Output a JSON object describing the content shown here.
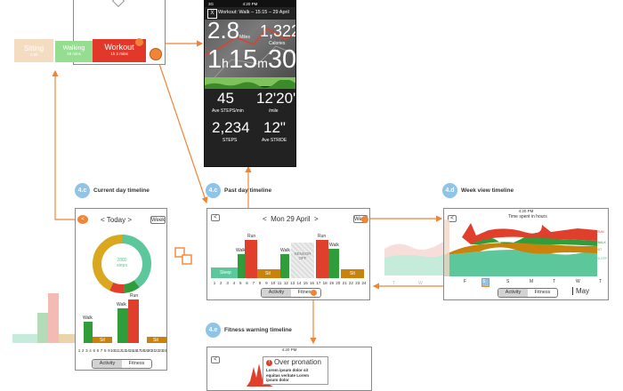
{
  "top_tiles": {
    "sitting": "Sitting",
    "sitting_sub": "2:5h",
    "walking": "Walking",
    "walking_sub": "49 mins",
    "workout": "Workout",
    "workout_sub": "1h 2 mins"
  },
  "workout_screen": {
    "status_time": "4:20 PM",
    "status_signal": "3G",
    "close": "X",
    "title": "Workout: Walk – 15:15 – 29 April",
    "distance": "2.8",
    "distance_unit": "Miles",
    "calories": "1,322",
    "calories_unit": "Calories",
    "time_h": "1",
    "time_h_unit": "h",
    "time_m": "15",
    "time_m_unit": "m",
    "time_s": "30",
    "time_s_unit": "s",
    "steps_min": "45",
    "steps_min_label": "Ave STEPS/min",
    "pace": "12'20\"",
    "pace_label": "/mile",
    "steps": "2,234",
    "steps_label": "STEPS",
    "stride": "12\"",
    "stride_label": "Ave STRIDE"
  },
  "current_day": {
    "badge": "4.c",
    "title": "Current day timeline",
    "back": "<",
    "date": "< Today >",
    "week": "Week",
    "ring_value": "2880",
    "ring_unit": "steps",
    "labels": {
      "walk1": "Walk",
      "walk2": "Walk",
      "run": "Run",
      "sit1": "Sit",
      "sit2": "Sit",
      "sleep": "Sleep"
    },
    "ticks": [
      "1",
      "2",
      "3",
      "4",
      "5",
      "6",
      "7",
      "8",
      "9",
      "10",
      "11",
      "12",
      "13",
      "14",
      "15",
      "16",
      "17",
      "18",
      "19",
      "20",
      "21",
      "22",
      "23",
      "24"
    ],
    "tabs": {
      "activity": "Activity",
      "fitness": "Fitness"
    }
  },
  "past_day": {
    "badge": "4.c",
    "title": "Past day timeline",
    "back": "<",
    "date": "<  Mon 29 April  >",
    "week": "Week",
    "labels": {
      "sleep": "Sleep",
      "walk1": "Walk",
      "run1": "Run",
      "sit1": "Sit",
      "walk2": "Walk",
      "sit2": "Sit",
      "sensor": "SENSOR\nOFF",
      "run2": "Run",
      "walk3": "Walk",
      "sit3": "Sit"
    },
    "ticks": [
      "1",
      "2",
      "3",
      "4",
      "5",
      "6",
      "7",
      "8",
      "9",
      "10",
      "11",
      "12",
      "13",
      "14",
      "15",
      "16",
      "17",
      "18",
      "19",
      "20",
      "21",
      "22",
      "23",
      "24"
    ],
    "tabs": {
      "activity": "Activity",
      "fitness": "Fitness"
    }
  },
  "week_view": {
    "badge": "4.d",
    "title": "Week view timeline",
    "status_time": "4:20 PM",
    "back": "<",
    "chart_title": "Time spent in hours",
    "legend": {
      "run": "RUN",
      "walk": "WALK",
      "sit": "SIT",
      "sleep": "SLEEP"
    },
    "days": [
      "T",
      "W",
      "T",
      "F",
      "S",
      "S",
      "M",
      "T",
      "W",
      "T"
    ],
    "month": "May",
    "tabs": {
      "activity": "Activity",
      "fitness": "Fitness"
    }
  },
  "fitness_warning": {
    "badge": "4.e",
    "title": "Fitness warning timeline",
    "status_time": "4:20 PM",
    "back": "<",
    "alert_icon": "!",
    "alert_title": "Over pronation",
    "alert_body": "Lorem ipsum dolor sit equitas veritate Lorem ipsum dolor"
  },
  "colors": {
    "sleep": "#5cc79a",
    "walk": "#2f9e3a",
    "run": "#e0402b",
    "sit": "#c9820c",
    "accent": "#ef8535",
    "badge": "#8fc3e8"
  }
}
